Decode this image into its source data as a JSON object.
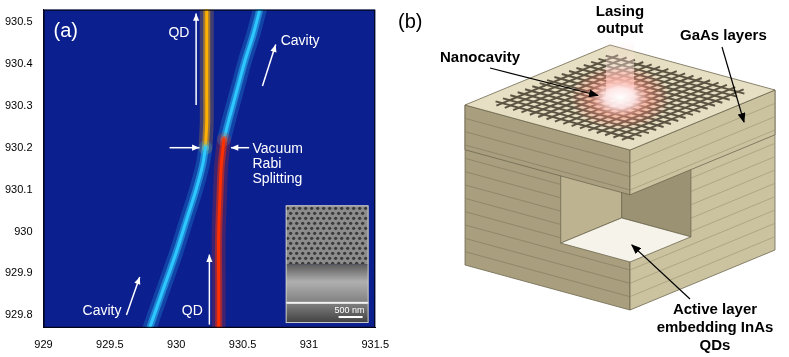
{
  "chart_data": {
    "type": "line",
    "title": "(a)",
    "xlim": [
      929,
      931.5
    ],
    "xticks": [
      929,
      929.5,
      930,
      930.5,
      931,
      931.5
    ],
    "ylim": [
      929.77,
      930.53
    ],
    "yticks": [
      929.8,
      929.9,
      930,
      930.1,
      930.2,
      930.3,
      930.4,
      930.5
    ],
    "grid": false,
    "series": [
      {
        "color": "#2ec8ff",
        "x": [
          929.8,
          929.9,
          930.0,
          930.08,
          930.15,
          930.2,
          930.22
        ],
        "values": [
          929.77,
          929.86,
          929.95,
          930.03,
          930.1,
          930.16,
          930.2
        ]
      },
      {
        "color": "#ffb000",
        "x": [
          930.22,
          930.23,
          930.23,
          930.23,
          930.23
        ],
        "values": [
          930.2,
          930.26,
          930.33,
          930.42,
          930.53
        ]
      },
      {
        "color": "#ff3000",
        "x": [
          930.32,
          930.32,
          930.32,
          930.33,
          930.34,
          930.36
        ],
        "values": [
          929.77,
          929.88,
          929.99,
          930.09,
          930.16,
          930.22
        ]
      },
      {
        "color": "#2ec8ff",
        "x": [
          930.36,
          930.4,
          930.46,
          930.52,
          930.58,
          930.63
        ],
        "values": [
          930.22,
          930.27,
          930.34,
          930.41,
          930.47,
          930.53
        ]
      }
    ],
    "annotations": [
      "QD",
      "Cavity",
      "Vacuum Rabi Splitting",
      "Cavity",
      "QD"
    ],
    "inset_scale_bar": "500 nm"
  },
  "diagram": {
    "panel_label": "(b)",
    "lasing_output": "Lasing output",
    "nanocavity": "Nanocavity",
    "gaas_layers": "GaAs layers",
    "active_layer": "Active layer embedding InAs QDs"
  }
}
